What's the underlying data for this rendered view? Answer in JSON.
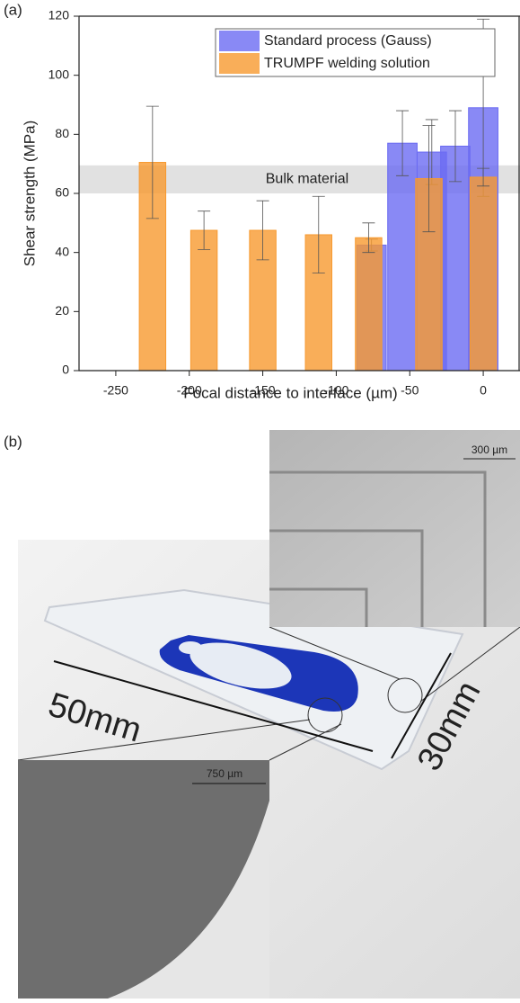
{
  "panel_labels": [
    "(a)",
    "(b)"
  ],
  "chart_data": {
    "type": "bar",
    "xlabel": "Focal distance to interface (µm)",
    "ylabel": "Shear strength (MPa)",
    "xlim": [
      -275,
      25
    ],
    "ylim": [
      0,
      120
    ],
    "xticks": [
      -250,
      -200,
      -150,
      -100,
      -50,
      0
    ],
    "yticks": [
      0,
      20,
      40,
      60,
      80,
      100,
      120
    ],
    "legend": "top-right",
    "band": {
      "label": "Bulk material",
      "range": [
        60,
        69.5
      ],
      "color": "#d9d9d9"
    },
    "series": [
      {
        "name": "Standard process (Gauss)",
        "color": "#6b6bf2",
        "x": [
          -76,
          -55,
          -35,
          -19,
          0
        ],
        "values": [
          42.5,
          77,
          74,
          76,
          89
        ],
        "errors": [
          2,
          11,
          11,
          12,
          30
        ]
      },
      {
        "name": "TRUMPF welding solution",
        "color": "#f79a30",
        "x": [
          -225,
          -190,
          -150,
          -112,
          -78,
          -37,
          0
        ],
        "values": [
          70.5,
          47.5,
          47.5,
          46,
          45,
          65,
          65.5
        ],
        "errors": [
          19,
          6.5,
          10,
          13,
          5,
          18,
          3
        ]
      }
    ]
  },
  "photo": {
    "scale_bars": [
      "300 µm",
      "750 µm"
    ],
    "dimensions": [
      "50mm",
      "30mm"
    ]
  }
}
